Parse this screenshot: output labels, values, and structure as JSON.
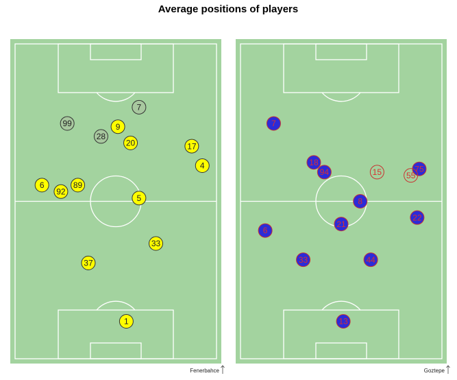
{
  "title": "Average positions of players",
  "chart_data": [
    {
      "type": "scatter",
      "team": "Fenerbahce",
      "xlim": [
        0,
        100
      ],
      "ylim": [
        0,
        100
      ],
      "labels": [
        "7",
        "99",
        "28",
        "9",
        "20",
        "17",
        "4",
        "6",
        "92",
        "89",
        "5",
        "33",
        "37",
        "1"
      ],
      "x": [
        61,
        27,
        43,
        51,
        57,
        86,
        91,
        15,
        24,
        32,
        61,
        69,
        37,
        55
      ],
      "y": [
        79,
        74,
        70,
        73,
        68,
        67,
        61,
        55,
        53,
        55,
        51,
        37,
        31,
        13
      ],
      "colors": [
        "#a8c89f",
        "#a8c89f",
        "#a8c89f",
        "#ffff00",
        "#ffff00",
        "#ffff00",
        "#ffff00",
        "#ffff00",
        "#ffff00",
        "#ffff00",
        "#ffff00",
        "#ffff00",
        "#ffff00",
        "#ffff00"
      ],
      "edge_colors": [
        "#333333",
        "#333333",
        "#333333",
        "#333333",
        "#333333",
        "#333333",
        "#333333",
        "#333333",
        "#333333",
        "#333333",
        "#333333",
        "#333333",
        "#333333",
        "#333333"
      ],
      "text_colors": [
        "#222222",
        "#222222",
        "#222222",
        "#222222",
        "#222222",
        "#222222",
        "#222222",
        "#222222",
        "#222222",
        "#222222",
        "#222222",
        "#222222",
        "#222222",
        "#222222"
      ]
    },
    {
      "type": "scatter",
      "team": "Goztepe",
      "xlim": [
        0,
        100
      ],
      "ylim": [
        0,
        100
      ],
      "labels": [
        "7",
        "18",
        "94",
        "15",
        "75",
        "55",
        "8",
        "21",
        "22",
        "6",
        "33",
        "44",
        "13"
      ],
      "x": [
        18,
        37,
        42,
        67,
        87,
        83,
        59,
        50,
        86,
        14,
        32,
        64,
        51
      ],
      "y": [
        74,
        62,
        59,
        59,
        60,
        58,
        50,
        43,
        45,
        41,
        32,
        32,
        13
      ],
      "colors": [
        "#2b2bd8",
        "#2b2bd8",
        "#2b2bd8",
        "none",
        "#2b2bd8",
        "none",
        "#2b2bd8",
        "#2b2bd8",
        "#2b2bd8",
        "#2b2bd8",
        "#2b2bd8",
        "#2b2bd8",
        "#2b2bd8"
      ],
      "edge_colors": [
        "#c83232",
        "#c83232",
        "#c83232",
        "#c83232",
        "#c83232",
        "#c83232",
        "#c83232",
        "#c83232",
        "#c83232",
        "#c83232",
        "#c83232",
        "#c83232",
        "#c83232"
      ],
      "text_colors": [
        "#d83030",
        "#d83030",
        "#d83030",
        "#d83030",
        "#d83030",
        "#d83030",
        "#d83030",
        "#d83030",
        "#d83030",
        "#d83030",
        "#d83030",
        "#d83030",
        "#d83030"
      ]
    }
  ]
}
